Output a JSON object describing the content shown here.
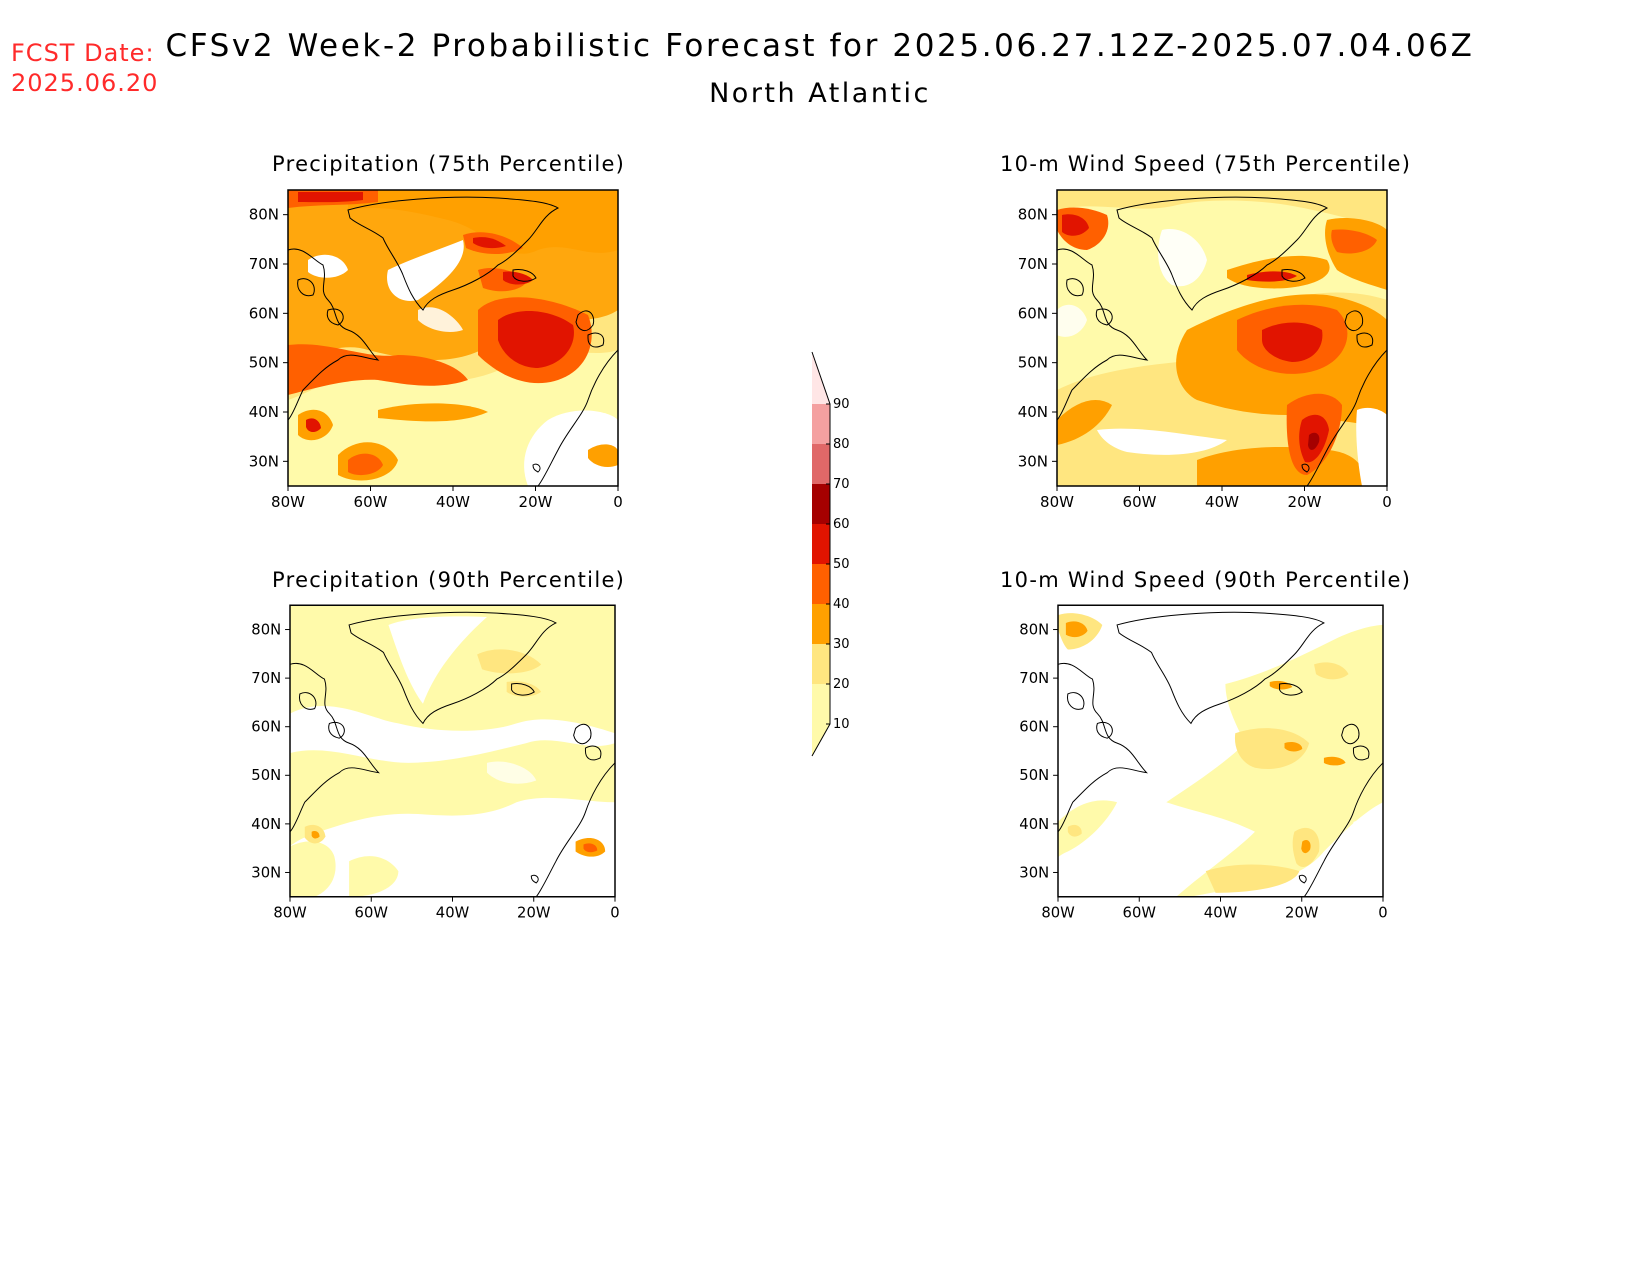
{
  "header": {
    "fcst_label": "FCST Date:",
    "fcst_date": "2025.06.20",
    "title": "CFSv2 Week-2 Probabilistic Forecast for 2025.06.27.12Z-2025.07.04.06Z",
    "subtitle": "North Atlantic"
  },
  "map_axes": {
    "lat_ticks": [
      "80N",
      "70N",
      "60N",
      "50N",
      "40N",
      "30N"
    ],
    "lon_ticks": [
      "80W",
      "60W",
      "40W",
      "20W",
      "0"
    ],
    "lon_range": [
      -80,
      0
    ],
    "lat_range": [
      25,
      85
    ]
  },
  "panels": [
    {
      "id": "precip-75",
      "title": "Precipitation (75th Percentile)"
    },
    {
      "id": "wind-75",
      "title": "10-m Wind Speed (75th Percentile)"
    },
    {
      "id": "precip-90",
      "title": "Precipitation (90th Percentile)"
    },
    {
      "id": "wind-90",
      "title": "10-m Wind Speed (90th Percentile)"
    }
  ],
  "colorbar": {
    "levels": [
      "10",
      "20",
      "30",
      "40",
      "50",
      "60",
      "70",
      "80",
      "90"
    ],
    "colors": [
      "#fffaaa",
      "#ffe680",
      "#ffa000",
      "#ff6000",
      "#e11400",
      "#a50000",
      "#e06868",
      "#f4a0a0",
      "#ffe6e6"
    ]
  }
}
